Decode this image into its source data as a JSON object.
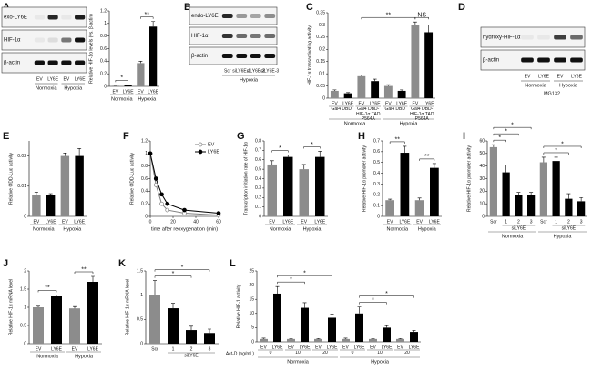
{
  "panels": [
    {
      "letter": "A",
      "type": "blot",
      "rows": [
        "exo-LY6E",
        "HIF-1α",
        "β-actin"
      ],
      "lanes": [
        "EV",
        "LY6E",
        "EV",
        "LY6E"
      ],
      "groups": [
        "Normoxia",
        "Hypoxia"
      ]
    },
    {
      "type": "bar",
      "ylabel": "Relative HIF-1α levels (vs. β-actin)",
      "categories": [
        "EV",
        "LY6E",
        "EV",
        "LY6E"
      ],
      "values": [
        0.01,
        0.02,
        0.37,
        0.95
      ],
      "errors": [
        0.005,
        0.005,
        0.03,
        0.08
      ],
      "colors": [
        "#8c8c8c",
        "#000000",
        "#8c8c8c",
        "#000000"
      ],
      "ylim": [
        0,
        1.2
      ],
      "yticks": [
        0,
        0.2,
        0.4,
        0.6,
        0.8,
        1,
        1.2
      ],
      "groups": [
        "Normoxia",
        "Hypoxia"
      ],
      "sig": [
        "*",
        "**"
      ]
    },
    {
      "letter": "B",
      "type": "blot",
      "rows": [
        "endo-LY6E",
        "HIF-1α",
        "β-actin"
      ],
      "lanes": [
        "Scr",
        "siLY6E-1",
        "siLY6E-2",
        "siLY6E-3"
      ],
      "groups": [
        "Hypoxia"
      ]
    },
    {
      "letter": "C",
      "type": "bar",
      "ylabel": "HIF-1α transactivating activity",
      "categories": [
        "EV",
        "LY6E",
        "EV",
        "LY6E",
        "EV",
        "LY6E",
        "EV",
        "LY6E"
      ],
      "values": [
        0.03,
        0.02,
        0.09,
        0.07,
        0.05,
        0.03,
        0.3,
        0.27
      ],
      "errors": [
        0.004,
        0.003,
        0.005,
        0.008,
        0.005,
        0.004,
        0.012,
        0.03
      ],
      "colors": [
        "#8c8c8c",
        "#000000",
        "#8c8c8c",
        "#000000",
        "#8c8c8c",
        "#000000",
        "#8c8c8c",
        "#000000"
      ],
      "ylim": [
        0,
        0.35
      ],
      "yticks": [
        0,
        0.05,
        0.1,
        0.15,
        0.2,
        0.25,
        0.3,
        0.35
      ],
      "subgroups": [
        "Gal4 DBD",
        "Gal4 DBD-HIF-1α TAD P564A",
        "Gal4 DBD",
        "Gal4 DBD-HIF-1α TAD P564A"
      ],
      "groups": [
        "Normoxia",
        "Hypoxia"
      ],
      "sig": [
        "**",
        "NS"
      ]
    },
    {
      "letter": "D",
      "type": "blot",
      "rows": [
        "hydroxy-HIF-1α",
        "β-actin"
      ],
      "lanes": [
        "EV",
        "LY6E",
        "EV",
        "LY6E"
      ],
      "groups": [
        "Normoxia",
        "Hypoxia"
      ],
      "note": "MG132"
    },
    {
      "letter": "E",
      "type": "bar",
      "ylabel": "Relative ODD-Luc activity",
      "categories": [
        "EV",
        "LY6E",
        "EV",
        "LY6E"
      ],
      "values": [
        0.007,
        0.007,
        0.02,
        0.02
      ],
      "errors": [
        0.001,
        0.0005,
        0.001,
        0.0025
      ],
      "colors": [
        "#8c8c8c",
        "#000000",
        "#8c8c8c",
        "#000000"
      ],
      "ylim": [
        0,
        0.025
      ],
      "yticks": [
        0,
        0.01,
        0.02
      ],
      "groups": [
        "Normoxia",
        "Hypoxia"
      ],
      "sig": []
    },
    {
      "letter": "F",
      "type": "line",
      "ylabel": "Relative ODD-Luc activity",
      "xlabel": "time after reoxygenation (min)",
      "x": [
        0,
        5,
        10,
        15,
        30,
        60
      ],
      "series": [
        {
          "name": "EV",
          "color": "#7f7f7f",
          "marker_fill": "#ffffff",
          "values": [
            1,
            0.5,
            0.2,
            0.1,
            0.05,
            0.02
          ]
        },
        {
          "name": "LY6E",
          "color": "#000000",
          "marker_fill": "#000000",
          "values": [
            1,
            0.6,
            0.35,
            0.2,
            0.1,
            0.05
          ]
        }
      ],
      "xlim": [
        0,
        60
      ],
      "xticks": [
        0,
        20,
        40,
        60
      ],
      "ylim": [
        0,
        1.2
      ],
      "yticks": [
        0,
        0.2,
        0.4,
        0.6,
        0.8,
        1,
        1.2
      ]
    },
    {
      "letter": "G",
      "type": "bar",
      "ylabel": "Transcription initiation rate of HIF-1α",
      "categories": [
        "EV",
        "LY6E",
        "EV",
        "LY6E"
      ],
      "values": [
        0.55,
        0.63,
        0.5,
        0.63
      ],
      "errors": [
        0.04,
        0.02,
        0.05,
        0.06
      ],
      "colors": [
        "#8c8c8c",
        "#000000",
        "#8c8c8c",
        "#000000"
      ],
      "ylim": [
        0,
        0.8
      ],
      "yticks": [
        0,
        0.1,
        0.2,
        0.3,
        0.4,
        0.5,
        0.6,
        0.7,
        0.8
      ],
      "groups": [
        "Normoxia",
        "Hypoxia"
      ],
      "sig": [
        "*",
        "*"
      ]
    },
    {
      "letter": "H",
      "type": "bar",
      "ylabel": "Relative HIF-1α promoter activity",
      "categories": [
        "EV",
        "LY6E",
        "EV",
        "LY6E"
      ],
      "values": [
        0.15,
        0.59,
        0.15,
        0.45
      ],
      "errors": [
        0.01,
        0.06,
        0.02,
        0.04
      ],
      "colors": [
        "#8c8c8c",
        "#000000",
        "#8c8c8c",
        "#000000"
      ],
      "ylim": [
        0,
        0.7
      ],
      "yticks": [
        0,
        0.1,
        0.2,
        0.3,
        0.4,
        0.5,
        0.6,
        0.7
      ],
      "groups": [
        "Normoxia",
        "Hypoxia"
      ],
      "sig": [
        "**",
        "**"
      ]
    },
    {
      "letter": "I",
      "type": "bar",
      "ylabel": "Relative HIF-1α promoter activity",
      "categories": [
        "Scr",
        "1",
        "2",
        "3",
        "Scr",
        "1",
        "2",
        "3"
      ],
      "values": [
        55,
        35,
        17,
        17,
        43,
        44,
        14,
        12
      ],
      "errors": [
        2,
        6,
        2,
        2,
        4,
        3,
        4,
        3
      ],
      "colors": [
        "#8c8c8c",
        "#000000",
        "#000000",
        "#000000",
        "#8c8c8c",
        "#000000",
        "#000000",
        "#000000"
      ],
      "ylim": [
        0,
        60
      ],
      "yticks": [
        0,
        10,
        20,
        30,
        40,
        50,
        60
      ],
      "sublabel": "siLY6E",
      "groups": [
        "Normoxia",
        "Hypoxia"
      ],
      "sig": [
        "*",
        "*",
        "*",
        "*",
        "*"
      ]
    },
    {
      "letter": "J",
      "type": "bar",
      "ylabel": "Relative HIF-1α mRNA level",
      "categories": [
        "EV",
        "LY6E",
        "EV",
        "LY6E"
      ],
      "values": [
        1.0,
        1.3,
        0.97,
        1.7
      ],
      "errors": [
        0.03,
        0.04,
        0.05,
        0.15
      ],
      "colors": [
        "#8c8c8c",
        "#000000",
        "#8c8c8c",
        "#000000"
      ],
      "ylim": [
        0,
        2
      ],
      "yticks": [
        0,
        0.5,
        1,
        1.5,
        2
      ],
      "groups": [
        "Normoxia",
        "Hypoxia"
      ],
      "sig": [
        "**",
        "**"
      ]
    },
    {
      "letter": "K",
      "type": "bar",
      "ylabel": "Relative HIF-1α mRNA level",
      "categories": [
        "Scr",
        "1",
        "2",
        "3"
      ],
      "values": [
        1.0,
        0.73,
        0.28,
        0.22
      ],
      "errors": [
        0.3,
        0.1,
        0.08,
        0.08
      ],
      "colors": [
        "#8c8c8c",
        "#000000",
        "#000000",
        "#000000"
      ],
      "ylim": [
        0,
        1.5
      ],
      "yticks": [
        0,
        0.5,
        1,
        1.5
      ],
      "sublabel": "siLY6E",
      "groups": [],
      "sig": [
        "*",
        "*"
      ]
    },
    {
      "letter": "L",
      "type": "bar",
      "ylabel": "Relative HIF-1 activity",
      "categories": [
        "EV",
        "LY6E",
        "EV",
        "LY6E",
        "EV",
        "LY6E",
        "EV",
        "LY6E",
        "EV",
        "LY6E",
        "EV",
        "LY6E"
      ],
      "values": [
        1,
        17,
        1,
        12,
        1,
        8.5,
        1,
        10,
        1,
        5,
        1,
        3.5
      ],
      "errors": [
        0.3,
        2.5,
        0.2,
        1.8,
        0.2,
        1.2,
        0.3,
        2.3,
        0.2,
        0.7,
        0.2,
        0.5
      ],
      "colors": [
        "#8c8c8c",
        "#000000",
        "#8c8c8c",
        "#000000",
        "#8c8c8c",
        "#000000",
        "#8c8c8c",
        "#000000",
        "#8c8c8c",
        "#000000",
        "#8c8c8c",
        "#000000"
      ],
      "ylim": [
        0,
        25
      ],
      "yticks": [
        0,
        5,
        10,
        15,
        20,
        25
      ],
      "subgroup_title": "Act-D (ng/mL)",
      "subgroups": [
        "0",
        "10",
        "20",
        "0",
        "10",
        "20"
      ],
      "groups": [
        "Normoxia",
        "Hypoxia"
      ],
      "sig": [
        "*",
        "*",
        "*",
        "*"
      ]
    }
  ]
}
